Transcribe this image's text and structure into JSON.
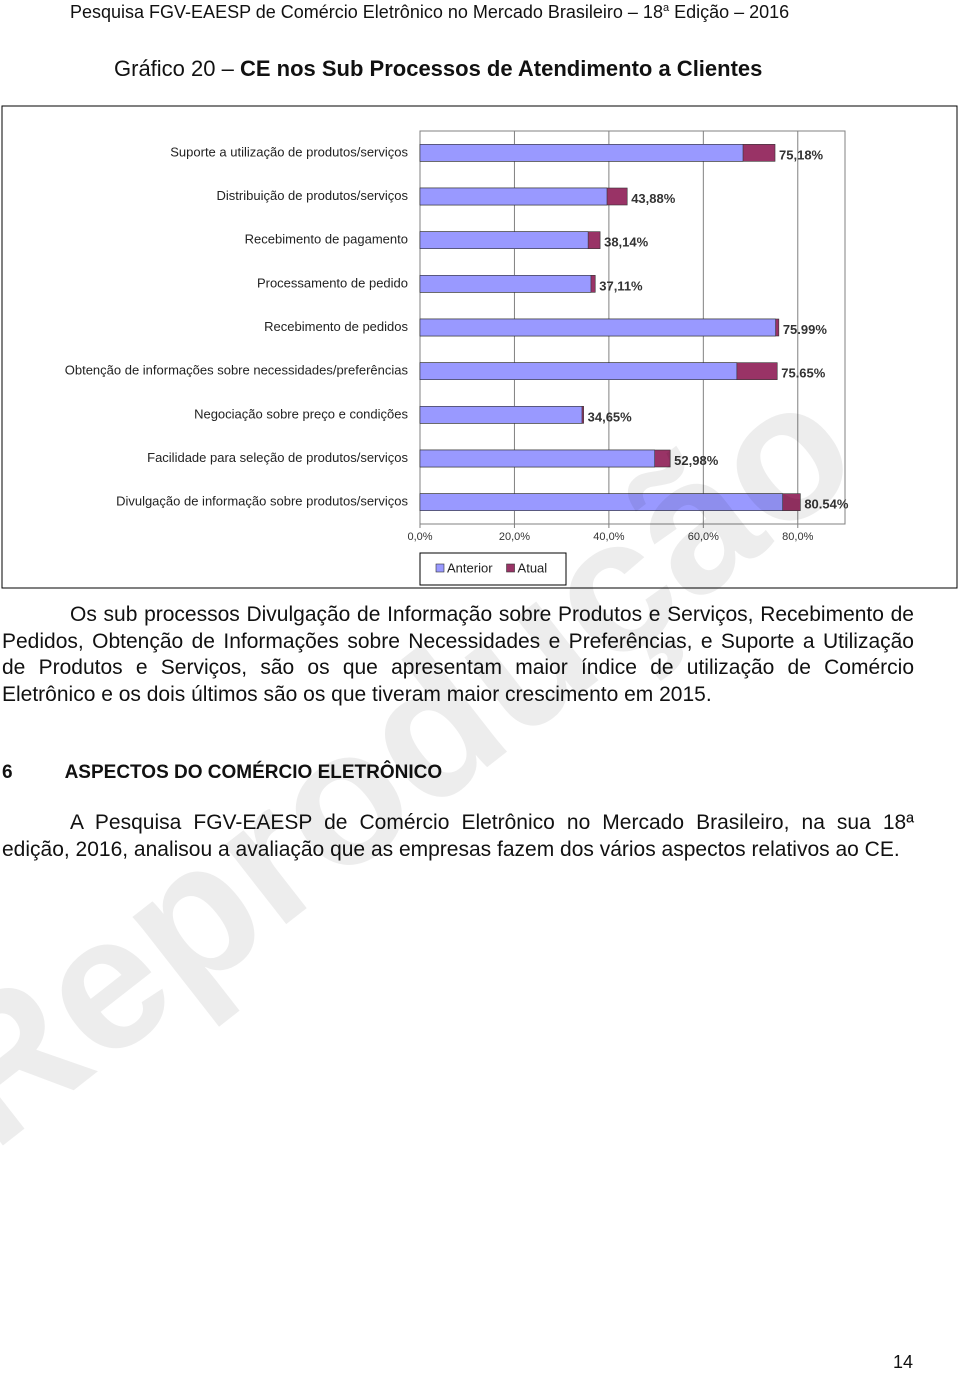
{
  "header": {
    "text": "Pesquisa FGV-EAESP de Comércio Eletrônico no Mercado Brasileiro – 18",
    "sup": "a",
    "text_end": " Edição – 2016"
  },
  "figure": {
    "label": "Gráfico 20 –",
    "title": "CE nos Sub Processos de Atendimento a Clientes"
  },
  "chart_data": {
    "type": "bar",
    "orientation": "horizontal",
    "overlap": true,
    "categories": [
      "Suporte a utilização de produtos/serviços",
      "Distribuição de produtos/serviços",
      "Recebimento de pagamento",
      "Processamento de pedido",
      "Recebimento de pedidos",
      "Obtenção de informações sobre necessidades/preferências",
      "Negociação sobre preço e condições",
      "Facilidade para seleção de produtos/serviços",
      "Divulgação de informação sobre produtos/serviços"
    ],
    "series": [
      {
        "name": "Anterior",
        "color": "#9999ff",
        "values": [
          68.4,
          39.6,
          35.6,
          36.2,
          75.3,
          67.1,
          34.3,
          49.7,
          76.8
        ]
      },
      {
        "name": "Atual",
        "color": "#993366",
        "values": [
          75.18,
          43.88,
          38.14,
          37.11,
          75.99,
          75.65,
          34.65,
          52.98,
          80.54
        ],
        "value_labels": [
          "75,18%",
          "43,88%",
          "38,14%",
          "37,11%",
          "75.99%",
          "75.65%",
          "34,65%",
          "52,98%",
          "80.54%"
        ]
      }
    ],
    "xlim": [
      0,
      90
    ],
    "xticks": [
      {
        "value": 0,
        "label": "0,0%"
      },
      {
        "value": 20,
        "label": "20,0%"
      },
      {
        "value": 40,
        "label": "40,0%"
      },
      {
        "value": 60,
        "label": "60,0%"
      },
      {
        "value": 80,
        "label": "80,0%"
      }
    ],
    "grid": true,
    "legend": "bottom"
  },
  "paragraphs": [
    "Os sub processos Divulgação de Informação sobre Produtos e Serviços, Recebimento de Pedidos, Obtenção de Informações sobre Necessidades e Preferências, e Suporte a Utilização de Produtos e Serviços, são os que apresentam maior índice de utilização de Comércio Eletrônico e os dois últimos são os que tiveram maior crescimento em 2015."
  ],
  "section": {
    "number": "6",
    "title": "ASPECTOS DO COMÉRCIO ELETRÔNICO"
  },
  "section_paragraphs": [
    "A Pesquisa FGV-EAESP de Comércio Eletrônico no Mercado Brasileiro, na sua 18ª edição, 2016, analisou a avaliação que as empresas fazem dos vários aspectos relativos ao CE."
  ],
  "watermark": "Reprodução",
  "page_number": "14"
}
